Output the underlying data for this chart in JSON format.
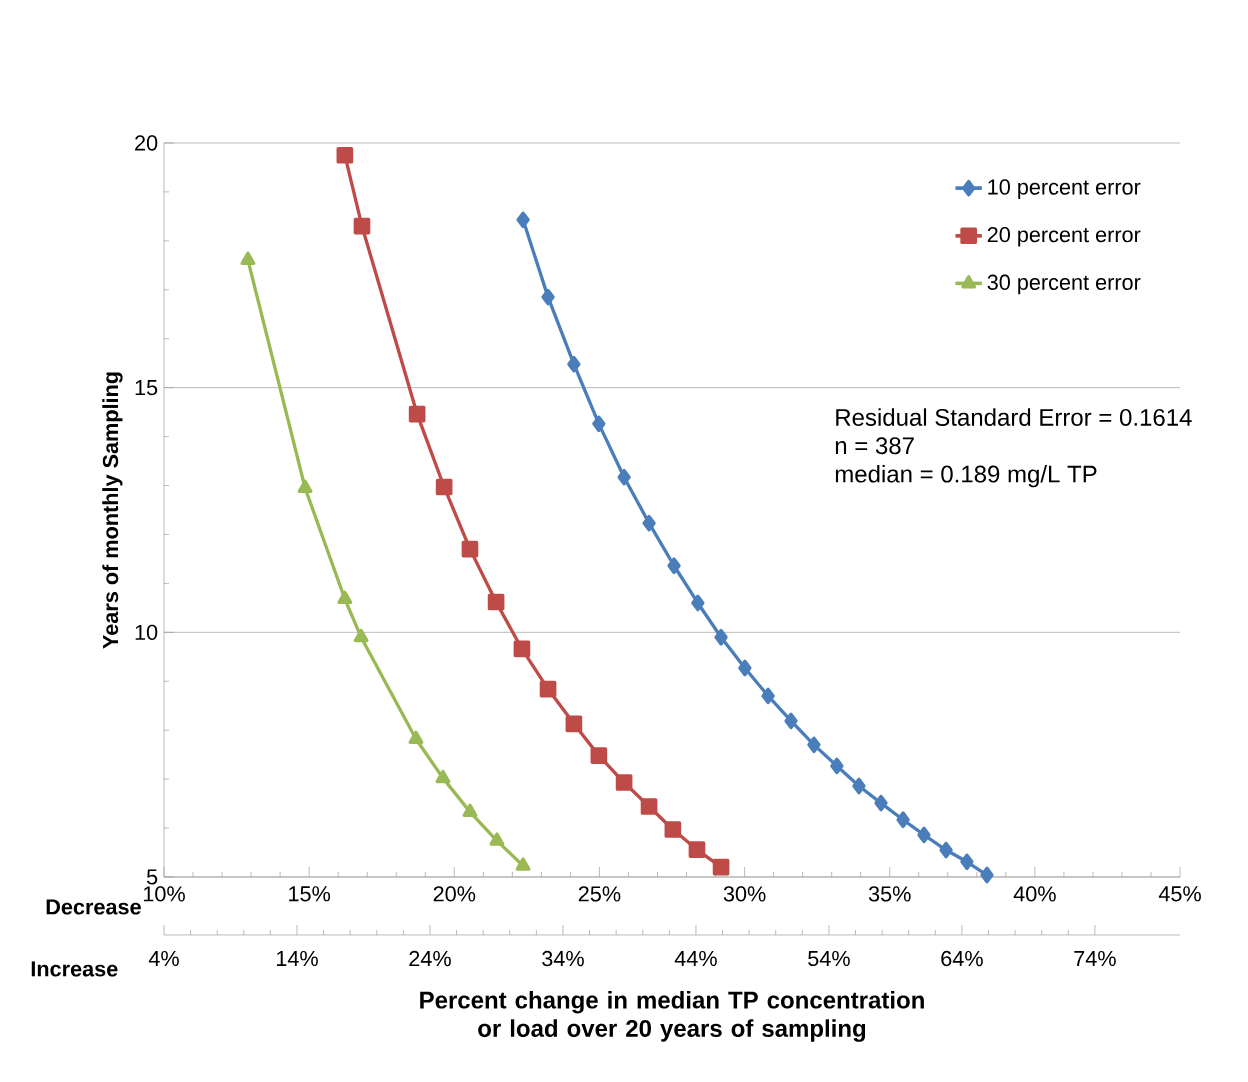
{
  "chart_data": {
    "type": "line",
    "xlabel": "Percent change in median TP concentration or load over 20 years of sampling",
    "ylabel": "Years of monthly Sampling",
    "xlim": [
      10,
      45
    ],
    "ylim": [
      5,
      20
    ],
    "xticks": [
      {
        "value": 10,
        "label": "10%"
      },
      {
        "value": 15,
        "label": "15%"
      },
      {
        "value": 20,
        "label": "20%"
      },
      {
        "value": 25,
        "label": "25%"
      },
      {
        "value": 30,
        "label": "30%"
      },
      {
        "value": 35,
        "label": "35%"
      },
      {
        "value": 40,
        "label": "40%"
      },
      {
        "value": 45,
        "label": "45%"
      }
    ],
    "yticks": [
      5,
      10,
      15,
      20
    ],
    "x2lim": [
      4,
      80.4
    ],
    "x2ticks": [
      {
        "value": 4,
        "label": "4%"
      },
      {
        "value": 14,
        "label": "14%"
      },
      {
        "value": 24,
        "label": "24%"
      },
      {
        "value": 34,
        "label": "34%"
      },
      {
        "value": 44,
        "label": "44%"
      },
      {
        "value": 54,
        "label": "54%"
      },
      {
        "value": 64,
        "label": "64%"
      },
      {
        "value": 74,
        "label": "74%"
      }
    ],
    "grid": "y",
    "legend": "top right",
    "line_style": "solid",
    "annotations": [
      "Decrease",
      "Increase",
      "Residual Standard Error = 0.1614",
      "n = 387",
      "median = 0.189 mg/L TP"
    ],
    "series": [
      {
        "name": "10 percent error",
        "color": "#4a7ebb",
        "marker": "diamond",
        "x": [
          22.37,
          23.23,
          24.12,
          24.98,
          25.85,
          26.71,
          27.57,
          28.39,
          29.19,
          30.01,
          30.81,
          31.6,
          32.39,
          33.18,
          33.94,
          34.7,
          35.46,
          36.18,
          36.94,
          37.66,
          38.35
        ],
        "values": [
          18.43,
          16.85,
          15.48,
          14.26,
          13.17,
          12.23,
          11.36,
          10.6,
          9.9,
          9.27,
          8.7,
          8.19,
          7.7,
          7.27,
          6.86,
          6.51,
          6.17,
          5.86,
          5.55,
          5.31,
          5.04
        ]
      },
      {
        "name": "20 percent error",
        "color": "#be4b48",
        "marker": "square",
        "x": [
          16.23,
          16.82,
          18.72,
          19.65,
          20.54,
          21.44,
          22.33,
          23.23,
          24.12,
          24.98,
          25.85,
          26.71,
          27.53,
          28.36,
          29.19
        ],
        "values": [
          19.75,
          18.3,
          14.46,
          12.97,
          11.7,
          10.62,
          9.66,
          8.84,
          8.13,
          7.48,
          6.93,
          6.44,
          5.97,
          5.56,
          5.2
        ]
      },
      {
        "name": "30 percent  error",
        "color": "#98b954",
        "marker": "triangle",
        "x": [
          12.89,
          14.86,
          16.23,
          16.79,
          18.68,
          19.61,
          20.54,
          21.47,
          22.37
        ],
        "values": [
          17.61,
          12.95,
          10.68,
          9.9,
          7.82,
          7.02,
          6.33,
          5.74,
          5.23
        ]
      }
    ]
  }
}
